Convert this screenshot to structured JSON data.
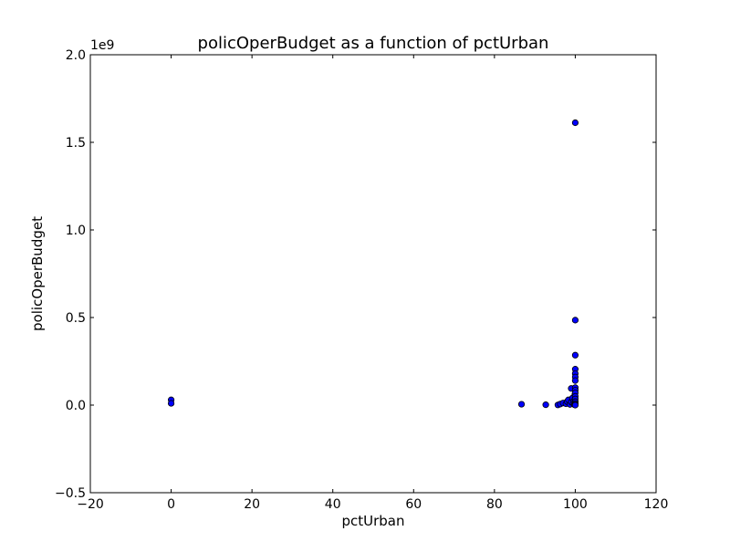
{
  "chart_data": {
    "type": "scatter",
    "title": "policOperBudget as a function of pctUrban",
    "xlabel": "pctUrban",
    "ylabel": "policOperBudget",
    "xlim": [
      -20,
      120
    ],
    "ylim": [
      -0.5,
      2.0
    ],
    "y_scale_offset_label": "1e9",
    "x_ticks": [
      -20,
      0,
      20,
      40,
      60,
      80,
      100,
      120
    ],
    "x_tick_labels": [
      "−20",
      "0",
      "20",
      "40",
      "60",
      "80",
      "100",
      "120"
    ],
    "y_ticks": [
      -0.5,
      0.0,
      0.5,
      1.0,
      1.5,
      2.0
    ],
    "y_tick_labels": [
      "−0.5",
      "0.0",
      "0.5",
      "1.0",
      "1.5",
      "2.0"
    ],
    "grid": false,
    "legend": "none",
    "marker_color": "#0000ff",
    "marker_edge_color": "#000000",
    "points": [
      {
        "x": 0,
        "y": 0.03
      },
      {
        "x": 0,
        "y": 0.01
      },
      {
        "x": 86.7,
        "y": 0.005
      },
      {
        "x": 92.7,
        "y": 0.002
      },
      {
        "x": 95.7,
        "y": 0.001
      },
      {
        "x": 96.3,
        "y": 0.006
      },
      {
        "x": 97.0,
        "y": 0.012
      },
      {
        "x": 97.7,
        "y": 0.008
      },
      {
        "x": 98.0,
        "y": 0.02
      },
      {
        "x": 98.3,
        "y": 0.03
      },
      {
        "x": 98.7,
        "y": 0.004
      },
      {
        "x": 99.0,
        "y": 0.018
      },
      {
        "x": 99.0,
        "y": 0.095
      },
      {
        "x": 99.3,
        "y": 0.04
      },
      {
        "x": 99.5,
        "y": 0.01
      },
      {
        "x": 99.7,
        "y": 0.025
      },
      {
        "x": 99.8,
        "y": 0.002
      },
      {
        "x": 99.9,
        "y": 0.06
      },
      {
        "x": 100,
        "y": 1.612
      },
      {
        "x": 100,
        "y": 0.485
      },
      {
        "x": 100,
        "y": 0.285
      },
      {
        "x": 100,
        "y": 0.205
      },
      {
        "x": 100,
        "y": 0.18
      },
      {
        "x": 100,
        "y": 0.16
      },
      {
        "x": 100,
        "y": 0.14
      },
      {
        "x": 100,
        "y": 0.1
      },
      {
        "x": 100,
        "y": 0.085
      },
      {
        "x": 100,
        "y": 0.07
      },
      {
        "x": 100,
        "y": 0.05
      },
      {
        "x": 100,
        "y": 0.035
      },
      {
        "x": 100,
        "y": 0.02
      },
      {
        "x": 100,
        "y": 0.01
      },
      {
        "x": 100,
        "y": 0.003
      },
      {
        "x": 100,
        "y": 0.0
      }
    ]
  }
}
